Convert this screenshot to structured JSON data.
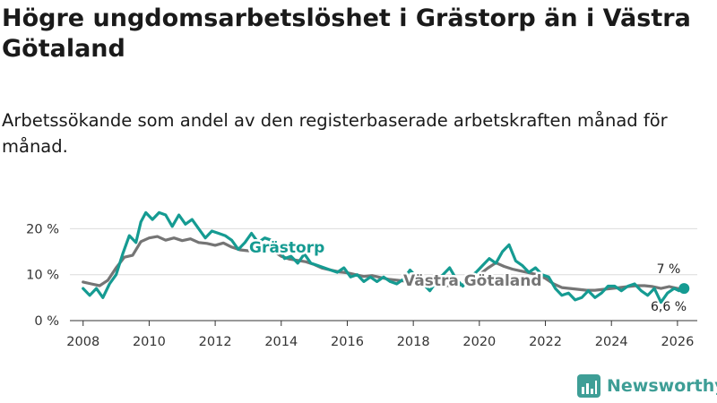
{
  "page": {
    "title": "Högre ungdomsarbetslöshet i Grästorp än i Västra Götaland",
    "subtitle": "Arbetssökande som andel av den registerbaserade arbetskraften månad för månad.",
    "brand": "Newsworthy"
  },
  "colors": {
    "grastorp": "#159b92",
    "vastra": "#757575",
    "grid": "#dcdcdc",
    "axis": "#333333",
    "brand": "#3e9e96"
  },
  "chart_data": {
    "type": "line",
    "title": "Högre ungdomsarbetslöshet i Grästorp än i Västra Götaland",
    "subtitle": "Arbetssökande som andel av den registerbaserade arbetskraften månad för månad.",
    "xlabel": "",
    "ylabel": "",
    "xlim": [
      2007.6,
      2026.6
    ],
    "ylim": [
      0,
      23
    ],
    "x_ticks": [
      2008,
      2010,
      2012,
      2014,
      2016,
      2018,
      2020,
      2022,
      2024,
      2026
    ],
    "x_tick_labels": [
      "2008",
      "2010",
      "2012",
      "2014",
      "2016",
      "2018",
      "2020",
      "2022",
      "2024",
      "2026"
    ],
    "y_ticks": [
      0,
      10,
      20
    ],
    "y_tick_labels": [
      "0 %",
      "10 %",
      "20 %"
    ],
    "grid": true,
    "series": [
      {
        "name": "Västra Götaland",
        "label": "Västra Götaland",
        "end_label": "6,6 %",
        "x": [
          2008.0,
          2008.25,
          2008.5,
          2008.75,
          2009.0,
          2009.25,
          2009.5,
          2009.75,
          2010.0,
          2010.25,
          2010.5,
          2010.75,
          2011.0,
          2011.25,
          2011.5,
          2011.75,
          2012.0,
          2012.25,
          2012.5,
          2012.75,
          2013.0,
          2013.25,
          2013.5,
          2013.75,
          2014.0,
          2014.25,
          2014.5,
          2014.75,
          2015.0,
          2015.25,
          2015.5,
          2015.75,
          2016.0,
          2016.25,
          2016.5,
          2016.75,
          2017.0,
          2017.25,
          2017.5,
          2017.75,
          2018.0,
          2018.25,
          2018.5,
          2018.75,
          2019.0,
          2019.25,
          2019.5,
          2019.75,
          2020.0,
          2020.25,
          2020.5,
          2020.75,
          2021.0,
          2021.25,
          2021.5,
          2021.75,
          2022.0,
          2022.25,
          2022.5,
          2022.75,
          2023.0,
          2023.25,
          2023.5,
          2023.75,
          2024.0,
          2024.25,
          2024.5,
          2024.75,
          2025.0,
          2025.25,
          2025.5,
          2025.75,
          2026.0,
          2026.2
        ],
        "values": [
          8.4,
          8.0,
          7.6,
          8.8,
          11.5,
          13.8,
          14.2,
          17.2,
          18.0,
          18.3,
          17.5,
          18.0,
          17.4,
          17.8,
          17.0,
          16.8,
          16.4,
          16.9,
          16.0,
          15.4,
          15.2,
          15.6,
          16.0,
          15.2,
          14.0,
          13.4,
          13.1,
          12.8,
          12.2,
          11.4,
          11.0,
          10.6,
          10.4,
          10.0,
          9.6,
          9.8,
          9.4,
          9.0,
          8.8,
          8.6,
          8.4,
          8.2,
          7.9,
          7.8,
          7.6,
          7.7,
          7.8,
          8.4,
          10.0,
          11.4,
          12.6,
          11.8,
          11.2,
          10.8,
          10.4,
          10.0,
          9.2,
          8.0,
          7.2,
          7.0,
          6.8,
          6.6,
          6.6,
          6.8,
          7.0,
          7.2,
          7.4,
          7.6,
          7.6,
          7.4,
          7.0,
          7.4,
          7.0,
          6.6
        ]
      },
      {
        "name": "Grästorp",
        "label": "Grästorp",
        "end_label": "7 %",
        "x": [
          2008.0,
          2008.2,
          2008.4,
          2008.6,
          2008.8,
          2009.0,
          2009.2,
          2009.4,
          2009.6,
          2009.75,
          2009.9,
          2010.1,
          2010.3,
          2010.5,
          2010.7,
          2010.9,
          2011.1,
          2011.3,
          2011.5,
          2011.7,
          2011.9,
          2012.1,
          2012.3,
          2012.5,
          2012.7,
          2012.9,
          2013.1,
          2013.3,
          2013.5,
          2013.7,
          2013.9,
          2014.1,
          2014.3,
          2014.5,
          2014.7,
          2014.9,
          2015.1,
          2015.3,
          2015.5,
          2015.7,
          2015.9,
          2016.1,
          2016.3,
          2016.5,
          2016.7,
          2016.9,
          2017.1,
          2017.3,
          2017.5,
          2017.7,
          2017.9,
          2018.1,
          2018.3,
          2018.5,
          2018.7,
          2018.9,
          2019.1,
          2019.3,
          2019.5,
          2019.7,
          2019.9,
          2020.1,
          2020.3,
          2020.5,
          2020.7,
          2020.9,
          2021.1,
          2021.3,
          2021.5,
          2021.7,
          2021.9,
          2022.1,
          2022.3,
          2022.5,
          2022.7,
          2022.9,
          2023.1,
          2023.3,
          2023.5,
          2023.7,
          2023.9,
          2024.1,
          2024.3,
          2024.5,
          2024.7,
          2024.9,
          2025.1,
          2025.3,
          2025.5,
          2025.7,
          2025.9,
          2026.05,
          2026.2
        ],
        "values": [
          7.0,
          5.5,
          7.0,
          5.0,
          8.0,
          10.0,
          14.5,
          18.5,
          17.0,
          21.5,
          23.5,
          22.0,
          23.5,
          23.0,
          20.5,
          23.0,
          21.0,
          22.0,
          20.0,
          18.0,
          19.5,
          19.0,
          18.5,
          17.5,
          15.5,
          17.0,
          19.0,
          17.0,
          18.0,
          17.5,
          16.0,
          13.5,
          14.0,
          12.5,
          14.5,
          12.5,
          12.0,
          11.5,
          11.0,
          10.5,
          11.5,
          9.5,
          10.0,
          8.5,
          9.5,
          8.5,
          9.5,
          8.5,
          8.0,
          9.0,
          11.0,
          9.5,
          8.0,
          6.5,
          8.5,
          10.0,
          11.5,
          9.0,
          7.5,
          9.5,
          10.5,
          12.0,
          13.5,
          12.5,
          15.0,
          16.5,
          13.0,
          12.0,
          10.5,
          11.5,
          10.0,
          9.5,
          7.0,
          5.5,
          6.0,
          4.5,
          5.0,
          6.5,
          5.0,
          6.0,
          7.5,
          7.5,
          6.5,
          7.5,
          8.0,
          6.5,
          5.5,
          7.0,
          4.0,
          6.0,
          7.0,
          6.5,
          7.0
        ]
      }
    ]
  }
}
